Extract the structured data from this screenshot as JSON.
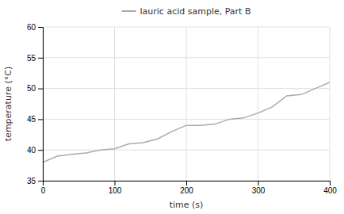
{
  "chart_data": {
    "type": "line",
    "x": [
      0,
      20,
      40,
      60,
      80,
      100,
      120,
      140,
      160,
      180,
      200,
      220,
      240,
      260,
      280,
      300,
      320,
      340,
      360,
      380,
      400
    ],
    "series": [
      {
        "name": "lauric acid sample, Part B",
        "color": "#aaaaaa",
        "values": [
          38.0,
          39.0,
          39.3,
          39.5,
          40.0,
          40.2,
          41.0,
          41.2,
          41.8,
          43.0,
          44.0,
          44.0,
          44.2,
          45.0,
          45.2,
          46.0,
          47.0,
          48.8,
          49.0,
          50.0,
          51.0
        ]
      }
    ],
    "xlabel": "time (s)",
    "ylabel": "temperature (°C)",
    "xlim": [
      0,
      400
    ],
    "ylim": [
      35,
      60
    ],
    "xticks": [
      0,
      100,
      200,
      300,
      400
    ],
    "yticks": [
      35,
      40,
      45,
      50,
      55,
      60
    ],
    "grid": true,
    "legend": "top"
  }
}
